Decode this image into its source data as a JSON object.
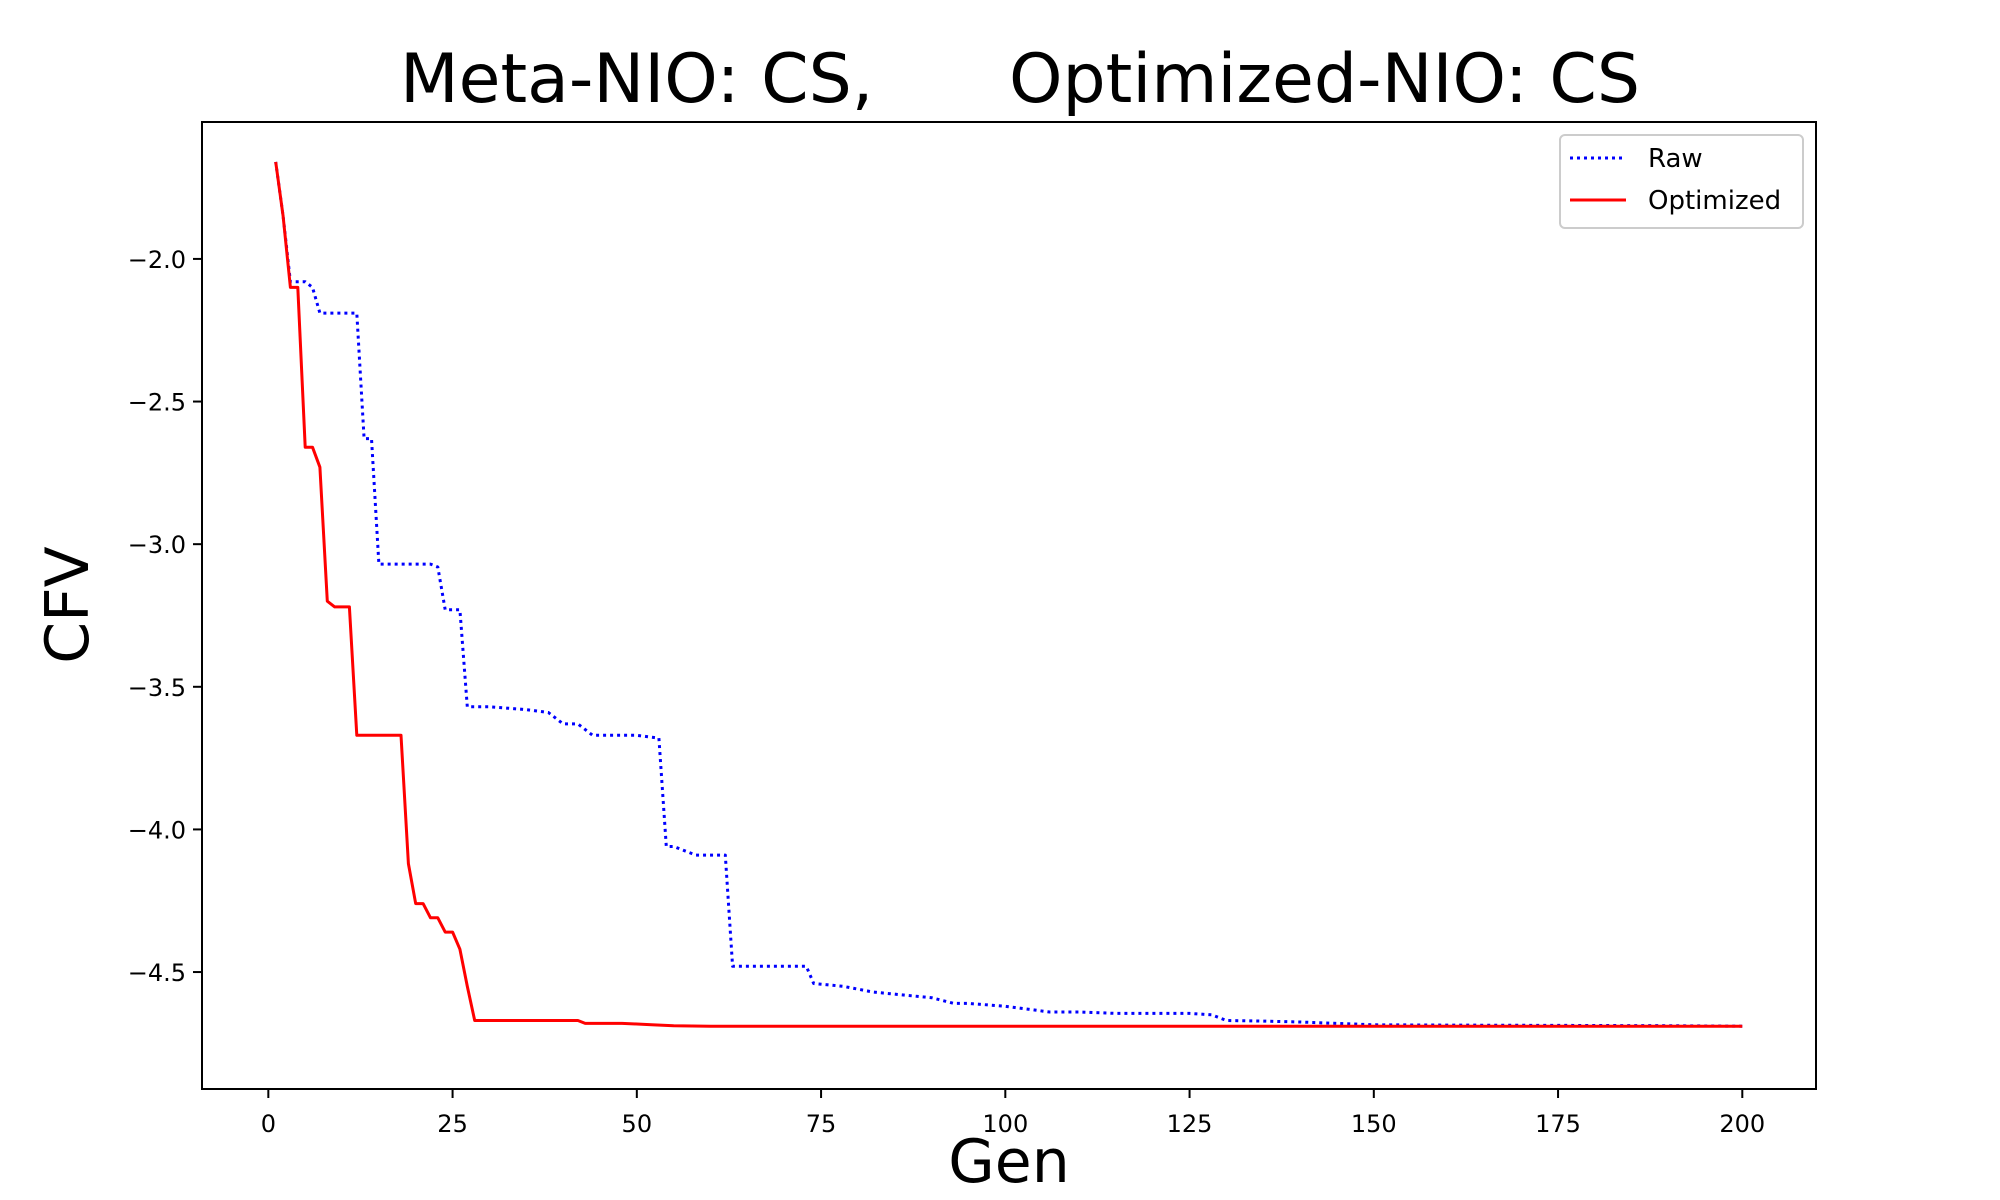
{
  "chart_data": {
    "type": "line",
    "title_left": "Meta-NIO: CS,",
    "title_right": "Optimized-NIO: CS",
    "xlabel": "Gen",
    "ylabel": "CFV",
    "xlim": [
      -9,
      210
    ],
    "ylim": [
      -4.91,
      -1.52
    ],
    "xticks": [
      0,
      25,
      50,
      75,
      100,
      125,
      150,
      175,
      200
    ],
    "xtick_labels": [
      "0",
      "25",
      "50",
      "75",
      "100",
      "125",
      "150",
      "175",
      "200"
    ],
    "yticks": [
      -2.0,
      -2.5,
      -3.0,
      -3.5,
      -4.0,
      -4.5
    ],
    "ytick_labels": [
      "−2.0",
      "−2.5",
      "−3.0",
      "−3.5",
      "−4.0",
      "−4.5"
    ],
    "grid": false,
    "legend": "top-right",
    "series": [
      {
        "name": "Raw",
        "color": "#0000ff",
        "style": "dotted",
        "x": [
          1,
          2,
          3,
          4,
          5,
          6,
          7,
          8,
          9,
          10,
          11,
          12,
          13,
          14,
          15,
          16,
          18,
          20,
          22,
          23,
          24,
          26,
          27,
          28,
          30,
          35,
          38,
          40,
          42,
          44,
          46,
          48,
          50,
          53,
          54,
          55,
          58,
          60,
          62,
          63,
          65,
          70,
          73,
          74,
          78,
          82,
          86,
          90,
          93,
          95,
          100,
          103,
          106,
          110,
          115,
          120,
          125,
          128,
          130,
          135,
          140,
          145,
          150,
          160,
          175,
          190,
          200
        ],
        "y": [
          -1.66,
          -1.85,
          -2.08,
          -2.08,
          -2.08,
          -2.1,
          -2.19,
          -2.19,
          -2.19,
          -2.19,
          -2.19,
          -2.19,
          -2.63,
          -2.63,
          -3.07,
          -3.07,
          -3.07,
          -3.07,
          -3.07,
          -3.08,
          -3.23,
          -3.23,
          -3.57,
          -3.57,
          -3.57,
          -3.58,
          -3.59,
          -3.63,
          -3.63,
          -3.67,
          -3.67,
          -3.67,
          -3.67,
          -3.68,
          -4.06,
          -4.06,
          -4.09,
          -4.09,
          -4.09,
          -4.48,
          -4.48,
          -4.48,
          -4.48,
          -4.54,
          -4.55,
          -4.57,
          -4.58,
          -4.59,
          -4.61,
          -4.61,
          -4.62,
          -4.63,
          -4.64,
          -4.64,
          -4.645,
          -4.645,
          -4.645,
          -4.65,
          -4.67,
          -4.672,
          -4.675,
          -4.68,
          -4.685,
          -4.686,
          -4.687,
          -4.688,
          -4.69
        ]
      },
      {
        "name": "Optimized",
        "color": "#ff0000",
        "style": "solid",
        "x": [
          1,
          2,
          3,
          4,
          5,
          6,
          7,
          8,
          9,
          10,
          11,
          12,
          13,
          15,
          17,
          18,
          19,
          20,
          21,
          22,
          23,
          24,
          25,
          26,
          27,
          28,
          30,
          35,
          40,
          42,
          43,
          45,
          48,
          50,
          52,
          55,
          60,
          65,
          70,
          80,
          100,
          120,
          150,
          175,
          200
        ],
        "y": [
          -1.66,
          -1.85,
          -2.1,
          -2.1,
          -2.66,
          -2.66,
          -2.73,
          -3.2,
          -3.22,
          -3.22,
          -3.22,
          -3.67,
          -3.67,
          -3.67,
          -3.67,
          -3.67,
          -4.12,
          -4.26,
          -4.26,
          -4.31,
          -4.31,
          -4.36,
          -4.36,
          -4.42,
          -4.55,
          -4.67,
          -4.67,
          -4.67,
          -4.67,
          -4.67,
          -4.68,
          -4.68,
          -4.68,
          -4.682,
          -4.685,
          -4.688,
          -4.69,
          -4.69,
          -4.69,
          -4.69,
          -4.69,
          -4.69,
          -4.69,
          -4.69,
          -4.69
        ]
      }
    ]
  }
}
